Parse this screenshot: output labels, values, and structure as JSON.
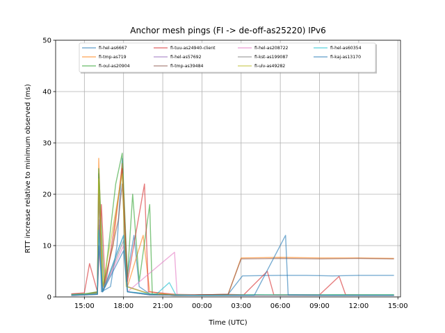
{
  "chart_data": {
    "type": "line",
    "title": "Anchor mesh pings (FI -> de-off-as25220) IPv6",
    "xlabel": "Time (UTC)",
    "ylabel": "RTT increase relative to minimum observed (ms)",
    "ylim": [
      0,
      50
    ],
    "y_ticks": [
      0,
      10,
      20,
      30,
      40,
      50
    ],
    "xlim_hours": [
      12.8,
      39.2
    ],
    "x_ticks": [
      {
        "h": 15,
        "label": "15:00"
      },
      {
        "h": 18,
        "label": "18:00"
      },
      {
        "h": 21,
        "label": "21:00"
      },
      {
        "h": 24,
        "label": "00:00"
      },
      {
        "h": 27,
        "label": "03:00"
      },
      {
        "h": 30,
        "label": "06:00"
      },
      {
        "h": 33,
        "label": "09:00"
      },
      {
        "h": 36,
        "label": "12:00"
      },
      {
        "h": 39,
        "label": "15:00"
      }
    ],
    "grid": true,
    "legend_position": "top-center",
    "series": [
      {
        "name": "fi-hel-as6667",
        "color": "#1f77b4",
        "points": [
          [
            14,
            0.5
          ],
          [
            15,
            0.6
          ],
          [
            16,
            0.8
          ],
          [
            16.1,
            24
          ],
          [
            16.3,
            1
          ],
          [
            17,
            2
          ],
          [
            17.5,
            10
          ],
          [
            17.9,
            27
          ],
          [
            18.2,
            3
          ],
          [
            18.8,
            12
          ],
          [
            19.2,
            2
          ],
          [
            20,
            0.6
          ],
          [
            22,
            0.3
          ],
          [
            24,
            0.4
          ],
          [
            26,
            0.5
          ],
          [
            27.1,
            4.1
          ],
          [
            30,
            4.2
          ],
          [
            32,
            4.2
          ],
          [
            34,
            4.1
          ],
          [
            36,
            4.2
          ],
          [
            38,
            4.2
          ],
          [
            38.7,
            4.2
          ]
        ]
      },
      {
        "name": "fi-tmp-as719",
        "color": "#ff7f0e",
        "points": [
          [
            14,
            0.4
          ],
          [
            15,
            0.5
          ],
          [
            16,
            1
          ],
          [
            16.1,
            27
          ],
          [
            16.4,
            2
          ],
          [
            17.2,
            10
          ],
          [
            17.9,
            26
          ],
          [
            18.3,
            2
          ],
          [
            19.5,
            12
          ],
          [
            20,
            1
          ],
          [
            22,
            0.3
          ],
          [
            24,
            0.4
          ],
          [
            26,
            0.5
          ],
          [
            27,
            7.6
          ],
          [
            30,
            7.7
          ],
          [
            33,
            7.6
          ],
          [
            36,
            7.6
          ],
          [
            38.7,
            7.5
          ]
        ]
      },
      {
        "name": "fi-oul-as20904",
        "color": "#2ca02c",
        "points": [
          [
            14,
            0.5
          ],
          [
            15,
            0.6
          ],
          [
            16,
            1
          ],
          [
            16.1,
            25
          ],
          [
            16.5,
            2
          ],
          [
            17.4,
            22
          ],
          [
            17.9,
            28
          ],
          [
            18.3,
            4
          ],
          [
            18.7,
            20
          ],
          [
            19.2,
            3
          ],
          [
            20,
            18
          ],
          [
            20.2,
            0.6
          ],
          [
            22,
            0.3
          ],
          [
            24,
            0.4
          ],
          [
            27,
            0.4
          ],
          [
            30,
            0.3
          ],
          [
            34,
            0.4
          ],
          [
            38.7,
            0.4
          ]
        ]
      },
      {
        "name": "fi-tuu-as24940-client",
        "color": "#d62728",
        "points": [
          [
            14,
            0.6
          ],
          [
            15,
            0.8
          ],
          [
            15.4,
            6.5
          ],
          [
            16,
            1
          ],
          [
            16.3,
            18
          ],
          [
            16.6,
            2
          ],
          [
            17.2,
            12
          ],
          [
            17.9,
            25
          ],
          [
            18.3,
            3
          ],
          [
            19.6,
            22
          ],
          [
            19.9,
            1
          ],
          [
            22,
            0.5
          ],
          [
            24,
            0.4
          ],
          [
            26,
            0.5
          ],
          [
            27.2,
            0.4
          ],
          [
            29,
            5
          ],
          [
            29.5,
            0.4
          ],
          [
            33,
            0.4
          ],
          [
            34.5,
            4
          ],
          [
            35,
            0.4
          ],
          [
            38.7,
            0.3
          ]
        ]
      },
      {
        "name": "fi-hel-as57692",
        "color": "#9467bd",
        "points": [
          [
            14,
            0.3
          ],
          [
            16,
            0.5
          ],
          [
            16.1,
            15
          ],
          [
            16.4,
            1
          ],
          [
            18,
            12
          ],
          [
            18.3,
            1
          ],
          [
            20,
            0.4
          ],
          [
            24,
            0.3
          ],
          [
            28,
            0.3
          ],
          [
            32,
            0.3
          ],
          [
            36,
            0.3
          ],
          [
            38.7,
            0.3
          ]
        ]
      },
      {
        "name": "fi-tmp-as39484",
        "color": "#8c564b",
        "points": [
          [
            14,
            0.4
          ],
          [
            15,
            0.5
          ],
          [
            16,
            0.8
          ],
          [
            16.1,
            20
          ],
          [
            16.4,
            1
          ],
          [
            17.6,
            15
          ],
          [
            17.9,
            22
          ],
          [
            18.3,
            2
          ],
          [
            20,
            0.6
          ],
          [
            22,
            0.3
          ],
          [
            24,
            0.4
          ],
          [
            26,
            0.5
          ],
          [
            27,
            7.4
          ],
          [
            30,
            7.5
          ],
          [
            33,
            7.4
          ],
          [
            36,
            7.5
          ],
          [
            38.7,
            7.4
          ]
        ]
      },
      {
        "name": "fi-hel-as208722",
        "color": "#e377c2",
        "points": [
          [
            14,
            0.3
          ],
          [
            16,
            0.6
          ],
          [
            16.1,
            12
          ],
          [
            16.4,
            1
          ],
          [
            18,
            10
          ],
          [
            18.3,
            1
          ],
          [
            21.9,
            8.7
          ],
          [
            22.1,
            0.4
          ],
          [
            24,
            0.3
          ],
          [
            28,
            0.3
          ],
          [
            32,
            0.3
          ],
          [
            36,
            0.3
          ],
          [
            38.7,
            0.3
          ]
        ]
      },
      {
        "name": "fi-kst-as199087",
        "color": "#7f7f7f",
        "points": [
          [
            14,
            0.3
          ],
          [
            16,
            0.5
          ],
          [
            16.1,
            14
          ],
          [
            16.4,
            1
          ],
          [
            18,
            11
          ],
          [
            18.3,
            1
          ],
          [
            20,
            0.4
          ],
          [
            24,
            0.3
          ],
          [
            28,
            0.4
          ],
          [
            32,
            0.3
          ],
          [
            36,
            0.3
          ],
          [
            38.7,
            0.3
          ]
        ]
      },
      {
        "name": "fi-ulv-as49282",
        "color": "#bcbd22",
        "points": [
          [
            14,
            0.4
          ],
          [
            16,
            0.7
          ],
          [
            16.1,
            23
          ],
          [
            16.4,
            2
          ],
          [
            17.9,
            24
          ],
          [
            18.2,
            2
          ],
          [
            20,
            0.6
          ],
          [
            24,
            0.3
          ],
          [
            28,
            0.4
          ],
          [
            32,
            0.4
          ],
          [
            36,
            0.4
          ],
          [
            38.7,
            0.4
          ]
        ]
      },
      {
        "name": "fi-hel-as60354",
        "color": "#17becf",
        "points": [
          [
            14,
            0.4
          ],
          [
            16,
            0.6
          ],
          [
            16.1,
            13
          ],
          [
            16.4,
            1
          ],
          [
            18,
            12
          ],
          [
            18.3,
            1
          ],
          [
            20.5,
            0.5
          ],
          [
            21.5,
            2.8
          ],
          [
            22,
            0.4
          ],
          [
            24,
            0.3
          ],
          [
            28,
            0.4
          ],
          [
            32,
            0.4
          ],
          [
            36,
            0.4
          ],
          [
            38.7,
            0.4
          ]
        ]
      },
      {
        "name": "fi-kaj-as13170",
        "color": "#1f77b4",
        "points": [
          [
            14,
            0.3
          ],
          [
            16,
            0.5
          ],
          [
            16.1,
            10
          ],
          [
            16.4,
            1
          ],
          [
            18,
            9
          ],
          [
            18.3,
            1
          ],
          [
            20,
            0.4
          ],
          [
            24,
            0.3
          ],
          [
            28,
            0.3
          ],
          [
            30.4,
            12
          ],
          [
            30.6,
            0.4
          ],
          [
            34,
            0.3
          ],
          [
            38.7,
            0.3
          ]
        ]
      }
    ]
  }
}
